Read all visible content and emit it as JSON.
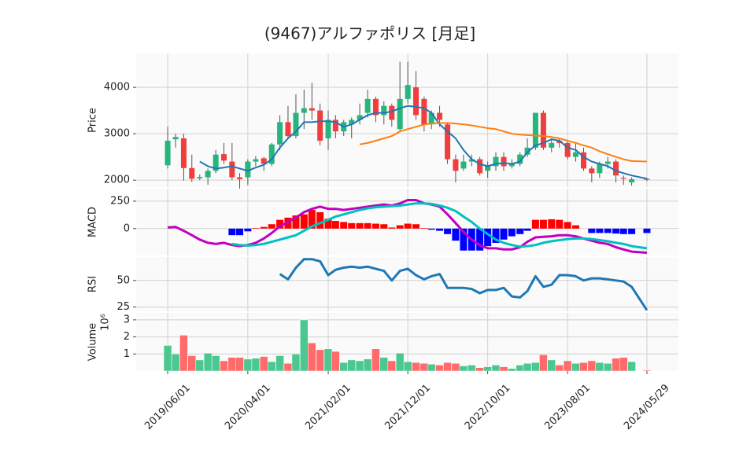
{
  "chart_data": {
    "type": "candlestick",
    "title": "(9467)アルファポリス  [月足]",
    "x": [
      "2019/06/01",
      "2019/07/01",
      "2019/08/01",
      "2019/09/01",
      "2019/10/01",
      "2019/11/01",
      "2019/12/01",
      "2020/01/01",
      "2020/02/01",
      "2020/03/01",
      "2020/04/01",
      "2020/05/01",
      "2020/06/01",
      "2020/07/01",
      "2020/08/01",
      "2020/09/01",
      "2020/10/01",
      "2020/11/01",
      "2020/12/01",
      "2021/01/01",
      "2021/02/01",
      "2021/03/01",
      "2021/04/01",
      "2021/05/01",
      "2021/06/01",
      "2021/07/01",
      "2021/08/01",
      "2021/09/01",
      "2021/10/01",
      "2021/11/01",
      "2021/12/01",
      "2022/01/01",
      "2022/02/01",
      "2022/03/01",
      "2022/04/01",
      "2022/05/01",
      "2022/06/01",
      "2022/07/01",
      "2022/08/01",
      "2022/09/01",
      "2022/10/01",
      "2022/11/01",
      "2022/12/01",
      "2023/01/01",
      "2023/02/01",
      "2023/03/01",
      "2023/04/01",
      "2023/05/01",
      "2023/06/01",
      "2023/07/01",
      "2023/08/01",
      "2023/09/01",
      "2023/10/01",
      "2023/11/01",
      "2023/12/01",
      "2024/01/01",
      "2024/02/01",
      "2024/03/01",
      "2024/04/01",
      "2024/05/29"
    ],
    "xlim": [
      "2019/02/01",
      "2024/09/26"
    ],
    "xticks": [
      "2019/06/01",
      "2020/04/01",
      "2021/02/01",
      "2021/12/01",
      "2022/10/01",
      "2023/08/01",
      "2024/05/29"
    ],
    "grid": true,
    "panels": [
      {
        "type": "candlestick",
        "ylabel": "Price",
        "ylim": [
          1850,
          4730
        ],
        "yticks": [
          2000,
          3000,
          4000
        ],
        "up_color": "#26b57a",
        "down_color": "#f23d3d",
        "open": [
          2320,
          2880,
          2900,
          2260,
          2040,
          2060,
          2200,
          2560,
          2400,
          2060,
          2060,
          2400,
          2470,
          2350,
          2770,
          3250,
          2950,
          3450,
          3550,
          3500,
          2900,
          3300,
          3050,
          3200,
          3300,
          3450,
          3750,
          3400,
          3600,
          3100,
          3750,
          4000,
          3750,
          3200,
          3450,
          3200,
          2450,
          2250,
          2400,
          2450,
          2200,
          2300,
          2500,
          2300,
          2350,
          2550,
          2700,
          3450,
          2700,
          2850,
          2800,
          2500,
          2600,
          2250,
          2150,
          2350,
          2400,
          2050,
          1950,
          2030
        ],
        "high": [
          3150,
          3000,
          3000,
          2550,
          2120,
          2250,
          2650,
          2800,
          2800,
          2150,
          2450,
          2520,
          2500,
          2800,
          3400,
          3600,
          3850,
          3950,
          4100,
          3650,
          3500,
          3400,
          3300,
          3350,
          3650,
          3950,
          3800,
          3700,
          3650,
          4550,
          4550,
          4350,
          3800,
          3500,
          3600,
          3250,
          2550,
          2550,
          2550,
          2500,
          2400,
          2600,
          2600,
          2450,
          2600,
          2900,
          3450,
          3500,
          2900,
          2900,
          2850,
          2800,
          2700,
          2300,
          2400,
          2500,
          2450,
          2100,
          2060,
          2050
        ],
        "low": [
          2250,
          2700,
          1990,
          1960,
          2000,
          1900,
          2150,
          2350,
          2000,
          1780,
          1900,
          2300,
          2200,
          2300,
          2650,
          2900,
          2900,
          3100,
          3300,
          2750,
          2650,
          2900,
          2950,
          2900,
          3200,
          3350,
          3250,
          3200,
          3150,
          3050,
          3650,
          3300,
          3050,
          3100,
          3150,
          2350,
          1950,
          2200,
          2300,
          2100,
          2050,
          2200,
          2200,
          2250,
          2300,
          2500,
          2650,
          2650,
          2600,
          2700,
          2450,
          2400,
          2200,
          1950,
          2050,
          2250,
          1950,
          1900,
          1880,
          1980
        ],
        "close": [
          2850,
          2930,
          2260,
          2030,
          2070,
          2200,
          2550,
          2420,
          2060,
          2020,
          2400,
          2450,
          2350,
          2770,
          3250,
          2950,
          3450,
          3550,
          3500,
          2850,
          3300,
          3050,
          3250,
          3300,
          3400,
          3750,
          3400,
          3600,
          3300,
          3750,
          4050,
          3400,
          3200,
          3450,
          3300,
          2450,
          2200,
          2400,
          2450,
          2150,
          2300,
          2500,
          2300,
          2350,
          2550,
          2700,
          3450,
          2700,
          2800,
          2800,
          2500,
          2600,
          2250,
          2150,
          2350,
          2400,
          2100,
          2030,
          2020,
          2010
        ],
        "series": [
          {
            "color": "#1f77b4",
            "values": [
              null,
              null,
              null,
              null,
              2400,
              2300,
              2250,
              2270,
              2300,
              2250,
              2200,
              2270,
              2330,
              2450,
              2700,
              2900,
              3050,
              3250,
              3250,
              3270,
              3270,
              3250,
              3150,
              3200,
              3300,
              3400,
              3450,
              3450,
              3480,
              3550,
              3600,
              3580,
              3550,
              3450,
              3200,
              3050,
              2900,
              2650,
              2450,
              2350,
              2300,
              2350,
              2370,
              2350,
              2400,
              2600,
              2750,
              2800,
              2880,
              2850,
              2700,
              2650,
              2500,
              2400,
              2350,
              2300,
              2200,
              2150,
              2100,
              2030
            ]
          },
          {
            "color": "#ff7f0e",
            "values": [
              null,
              null,
              null,
              null,
              null,
              null,
              null,
              null,
              null,
              null,
              null,
              null,
              null,
              null,
              null,
              null,
              null,
              null,
              null,
              null,
              null,
              null,
              null,
              null,
              2770,
              2800,
              2850,
              2900,
              2950,
              3050,
              3100,
              3150,
              3200,
              3220,
              3230,
              3230,
              3220,
              3200,
              3180,
              3150,
              3120,
              3100,
              3050,
              3000,
              2980,
              2970,
              2960,
              2950,
              2930,
              2900,
              2850,
              2800,
              2750,
              2700,
              2620,
              2560,
              2500,
              2450,
              2410,
              2400
            ]
          }
        ]
      },
      {
        "type": "combo",
        "ylabel": "MACD",
        "ylim": [
          -245,
          364
        ],
        "yticks": [
          0,
          250
        ],
        "bar_pos_color": "#ff0000",
        "bar_neg_color": "#0000ff",
        "bars": [
          null,
          null,
          null,
          null,
          null,
          null,
          null,
          null,
          -60,
          -60,
          -25,
          5,
          15,
          40,
          80,
          100,
          120,
          130,
          170,
          150,
          90,
          70,
          60,
          50,
          50,
          50,
          45,
          40,
          10,
          30,
          45,
          40,
          5,
          -10,
          -20,
          -50,
          -110,
          -200,
          -200,
          -200,
          -160,
          -130,
          -100,
          -70,
          -50,
          -20,
          80,
          80,
          85,
          80,
          60,
          30,
          0,
          -40,
          -40,
          -40,
          -45,
          -50,
          -50,
          -40
        ],
        "series": [
          {
            "color": "#c000c0",
            "values": [
              10,
              15,
              -20,
              -60,
              -100,
              -130,
              -140,
              -130,
              -150,
              -160,
              -150,
              -130,
              -90,
              -40,
              20,
              60,
              100,
              150,
              180,
              200,
              180,
              180,
              170,
              180,
              190,
              200,
              210,
              220,
              210,
              230,
              260,
              260,
              230,
              220,
              200,
              130,
              50,
              -30,
              -100,
              -150,
              -180,
              -180,
              -190,
              -190,
              -170,
              -120,
              -80,
              -75,
              -70,
              -60,
              -60,
              -70,
              -90,
              -110,
              -130,
              -140,
              -170,
              -190,
              -210,
              -220
            ]
          },
          {
            "color": "#00c0c0",
            "values": [
              null,
              null,
              null,
              null,
              null,
              null,
              null,
              null,
              -140,
              -150,
              -155,
              -150,
              -140,
              -120,
              -100,
              -80,
              -60,
              -20,
              20,
              50,
              80,
              110,
              130,
              150,
              170,
              185,
              195,
              200,
              205,
              210,
              220,
              230,
              230,
              225,
              210,
              190,
              160,
              110,
              60,
              0,
              -50,
              -100,
              -130,
              -150,
              -165,
              -160,
              -150,
              -130,
              -115,
              -105,
              -95,
              -90,
              -90,
              -95,
              -105,
              -115,
              -130,
              -140,
              -160,
              -180
            ]
          }
        ]
      },
      {
        "type": "line",
        "ylabel": "RSI",
        "ylim": [
          21,
          72
        ],
        "yticks": [
          25,
          50
        ],
        "series": [
          {
            "color": "#1f77b4",
            "values": [
              null,
              null,
              null,
              null,
              null,
              null,
              null,
              null,
              null,
              null,
              null,
              null,
              null,
              null,
              56,
              51,
              62,
              70,
              70,
              68,
              55,
              60,
              62,
              63,
              62,
              63,
              61,
              59,
              50,
              59,
              61,
              55,
              51,
              54,
              56,
              43,
              43,
              43,
              42,
              38,
              41,
              41,
              43,
              35,
              34,
              40,
              54,
              44,
              46,
              55,
              55,
              54,
              50,
              52,
              52,
              51,
              50,
              49,
              44,
              22
            ]
          }
        ]
      },
      {
        "type": "bar",
        "ylabel": "Volume",
        "offset_label": "10⁶",
        "ylim": [
          0,
          3.41
        ],
        "yticks": [
          1,
          2,
          3
        ],
        "up_color": "#4cc790",
        "down_color": "#ff6a6a",
        "values": [
          1.5,
          1.0,
          2.1,
          0.9,
          0.65,
          1.05,
          0.9,
          0.6,
          0.8,
          0.8,
          0.7,
          0.75,
          0.85,
          0.55,
          0.9,
          0.45,
          1.0,
          3.0,
          1.65,
          1.25,
          1.3,
          1.15,
          0.5,
          0.65,
          0.6,
          0.7,
          1.3,
          0.8,
          0.6,
          1.05,
          0.55,
          0.5,
          0.45,
          0.4,
          0.35,
          0.5,
          0.45,
          0.3,
          0.35,
          0.2,
          0.25,
          0.35,
          0.25,
          0.15,
          0.35,
          0.45,
          0.5,
          0.95,
          0.65,
          0.35,
          0.6,
          0.45,
          0.5,
          0.6,
          0.5,
          0.45,
          0.75,
          0.8,
          0.55,
          0.05
        ]
      }
    ]
  }
}
